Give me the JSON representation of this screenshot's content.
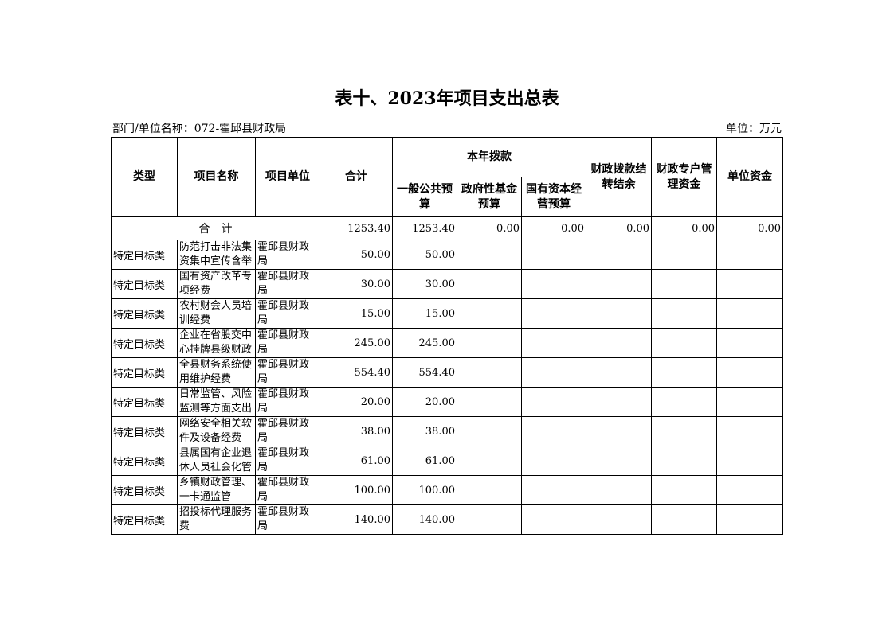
{
  "title": "表十、2023年项目支出总表",
  "dept_label": "部门/单位名称：072-霍邱县财政局",
  "unit_label": "单位：万元",
  "headers": {
    "type": "类型",
    "name": "项目名称",
    "unit": "项目单位",
    "total": "合计",
    "current_year": "本年拨款",
    "general": "一般公共预算",
    "fund": "政府性基金预算",
    "state_capital": "国有资本经营预算",
    "carryover": "财政拨款结转结余",
    "special": "财政专户管理资金",
    "own": "单位资金"
  },
  "total_row": {
    "label": "合　计",
    "total": "1253.40",
    "general": "1253.40",
    "fund": "0.00",
    "state_capital": "0.00",
    "carryover": "0.00",
    "special": "0.00",
    "own": "0.00"
  },
  "rows": [
    {
      "type": "特定目标类",
      "name": "防范打击非法集资集中宣传含举",
      "unit": "霍邱县财政局",
      "total": "50.00",
      "general": "50.00"
    },
    {
      "type": "特定目标类",
      "name": "国有资产改革专项经费",
      "unit": "霍邱县财政局",
      "total": "30.00",
      "general": "30.00"
    },
    {
      "type": "特定目标类",
      "name": "农村财会人员培训经费",
      "unit": "霍邱县财政局",
      "total": "15.00",
      "general": "15.00"
    },
    {
      "type": "特定目标类",
      "name": "企业在省股交中心挂牌县级财政",
      "unit": "霍邱县财政局",
      "total": "245.00",
      "general": "245.00"
    },
    {
      "type": "特定目标类",
      "name": "全县财务系统使用维护经费",
      "unit": "霍邱县财政局",
      "total": "554.40",
      "general": "554.40"
    },
    {
      "type": "特定目标类",
      "name": "日常监管、风险监测等方面支出",
      "unit": "霍邱县财政局",
      "total": "20.00",
      "general": "20.00"
    },
    {
      "type": "特定目标类",
      "name": "网络安全相关软件及设备经费",
      "unit": "霍邱县财政局",
      "total": "38.00",
      "general": "38.00"
    },
    {
      "type": "特定目标类",
      "name": "县属国有企业退休人员社会化管",
      "unit": "霍邱县财政局",
      "total": "61.00",
      "general": "61.00"
    },
    {
      "type": "特定目标类",
      "name": "乡镇财政管理、一卡通监管",
      "unit": "霍邱县财政局",
      "total": "100.00",
      "general": "100.00"
    },
    {
      "type": "特定目标类",
      "name": "招投标代理服务费",
      "unit": "霍邱县财政局",
      "total": "140.00",
      "general": "140.00"
    }
  ]
}
